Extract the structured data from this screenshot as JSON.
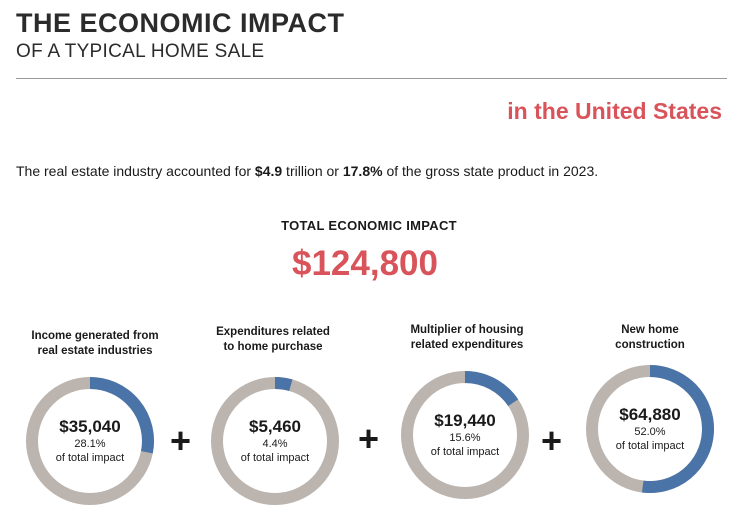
{
  "header": {
    "title": "THE ECONOMIC IMPACT",
    "subtitle": "OF A TYPICAL HOME SALE",
    "region": "in the United States"
  },
  "summary": {
    "prefix": "The real estate industry accounted for ",
    "amount": "$4.9",
    "middle": " trillion or ",
    "share": "17.8%",
    "suffix": " of the gross state product in 2023."
  },
  "total": {
    "label": "TOTAL ECONOMIC IMPACT",
    "value": "$124,800"
  },
  "operators": {
    "plus": "+"
  },
  "colors": {
    "accent_red": "#d9535a",
    "share_blue": "#4a73a7",
    "ring_gray": "#bcb4ae"
  },
  "chart_data": {
    "type": "pie",
    "title": "TOTAL ECONOMIC IMPACT",
    "total_value": 124800,
    "subtitle_unit": "of total impact",
    "categories": [
      {
        "label_line1": "Income generated from",
        "label_line2": "real estate industries",
        "value": 35040,
        "value_label": "$35,040",
        "percent": 28.1,
        "percent_label": "28.1%"
      },
      {
        "label_line1": "Expenditures related",
        "label_line2": "to home purchase",
        "value": 5460,
        "value_label": "$5,460",
        "percent": 4.4,
        "percent_label": "4.4%"
      },
      {
        "label_line1": "Multiplier of housing",
        "label_line2": "related expenditures",
        "value": 19440,
        "value_label": "$19,440",
        "percent": 15.6,
        "percent_label": "15.6%"
      },
      {
        "label_line1": "New home",
        "label_line2": "construction",
        "value": 64880,
        "value_label": "$64,880",
        "percent": 52.0,
        "percent_label": "52.0%"
      }
    ]
  }
}
